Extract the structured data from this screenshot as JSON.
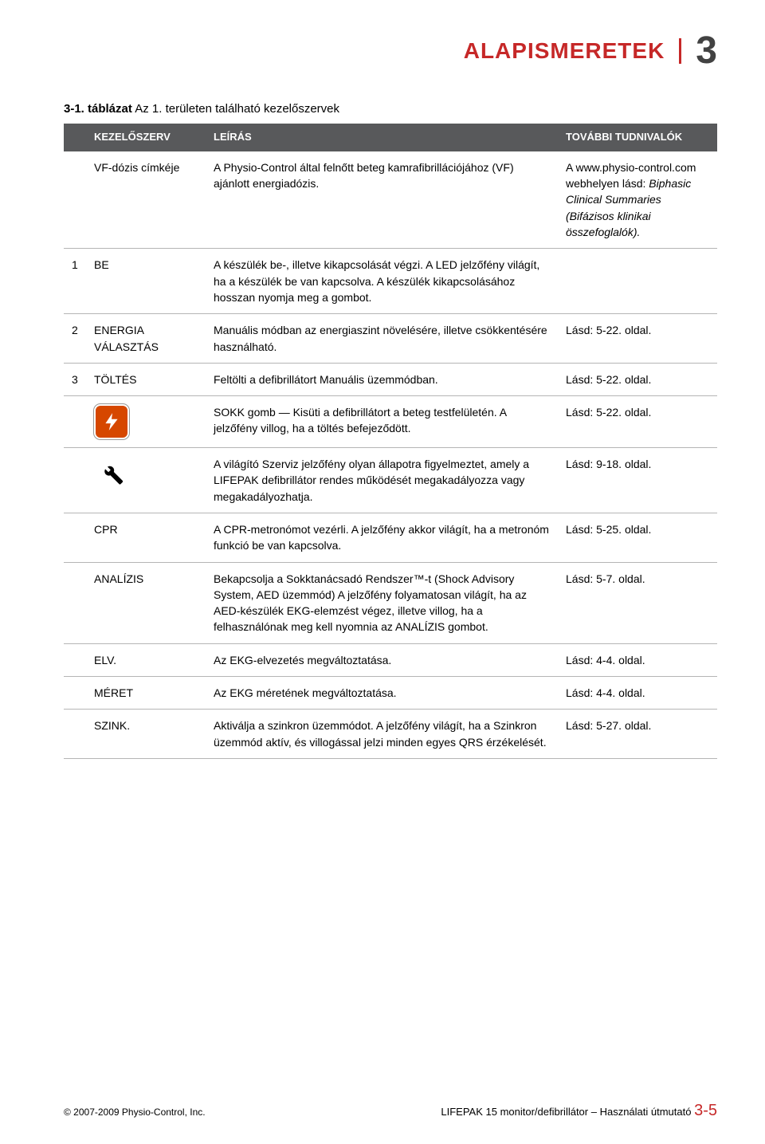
{
  "header": {
    "title": "ALAPISMERETEK",
    "chapter_number": "3",
    "title_color": "#C62828",
    "number_color": "#424242"
  },
  "table_caption": {
    "prefix_bold": "3-1. táblázat",
    "rest": "  Az 1. területen található kezelőszervek"
  },
  "columns": {
    "control": "KEZELŐSZERV",
    "description": "LEÍRÁS",
    "more_info": "TOVÁBBI TUDNIVALÓK"
  },
  "rows": [
    {
      "num": "",
      "control": "VF-dózis címkéje",
      "description": "A Physio-Control által felnőtt beteg kamrafibrillációjához (VF) ajánlott energiadózis.",
      "info_parts": [
        {
          "text": "A www.physio-control.com webhelyen lásd: ",
          "italic": false
        },
        {
          "text": "Biphasic Clinical Summaries (Bifázisos klinikai összefoglalók).",
          "italic": true
        }
      ]
    },
    {
      "num": "1",
      "control": "BE",
      "description": "A készülék be-, illetve kikapcsolását végzi. A LED jelzőfény világít, ha a készülék be van kapcsolva. A készülék kikapcsolásához hosszan nyomja meg a gombot.",
      "info": ""
    },
    {
      "num": "2",
      "control": "ENERGIA VÁLASZTÁS",
      "description": "Manuális módban az energiaszint növelésére, illetve csökkentésére használható.",
      "info": "Lásd: 5-22. oldal."
    },
    {
      "num": "3",
      "control": "TÖLTÉS",
      "description": "Feltölti a defibrillátort Manuális üzemmódban.",
      "info": "Lásd: 5-22. oldal."
    },
    {
      "num": "",
      "icon": "shock",
      "description": "SOKK gomb — Kisüti a defibrillátort a beteg testfelületén. A jelzőfény villog, ha a töltés befejeződött.",
      "info": "Lásd: 5-22. oldal."
    },
    {
      "num": "",
      "icon": "wrench",
      "description": "A világító Szerviz jelzőfény olyan állapotra figyelmeztet, amely a LIFEPAK defibrillátor rendes működését megakadályozza vagy megakadályozhatja.",
      "info": "Lásd: 9-18. oldal."
    },
    {
      "num": "",
      "control": "CPR",
      "description": "A CPR-metronómot vezérli. A jelzőfény akkor világít, ha a metronóm funkció be van kapcsolva.",
      "info": "Lásd: 5-25. oldal."
    },
    {
      "num": "",
      "control": "ANALÍZIS",
      "description": "Bekapcsolja a Sokktanácsadó Rendszer™-t (Shock Advisory System, AED üzemmód) A jelzőfény folyamatosan világít, ha az AED-készülék EKG-elemzést végez, illetve villog, ha a felhasználónak meg kell nyomnia az ANALÍZIS gombot.",
      "info": "Lásd: 5-7. oldal."
    },
    {
      "num": "",
      "control": "ELV.",
      "description": "Az EKG-elvezetés megváltoztatása.",
      "info": "Lásd: 4-4. oldal."
    },
    {
      "num": "",
      "control": "MÉRET",
      "description": "Az EKG méretének megváltoztatása.",
      "info": "Lásd: 4-4. oldal."
    },
    {
      "num": "",
      "control": "SZINK.",
      "description": "Aktiválja a szinkron üzemmódot. A jelzőfény világít, ha a Szinkron üzemmód aktív, és villogással jelzi minden egyes QRS érzékelését.",
      "info": "Lásd: 5-27. oldal."
    }
  ],
  "footer": {
    "copyright": "© 2007-2009 Physio-Control, Inc.",
    "doc_title": "LIFEPAK 15 monitor/defibrillátor – Használati útmutató",
    "page_number": "3-5"
  },
  "style": {
    "header_bg": "#58595B",
    "header_fg": "#ffffff",
    "row_border": "#b5b5b5",
    "accent": "#C62828",
    "shock_bg": "#D64700"
  }
}
